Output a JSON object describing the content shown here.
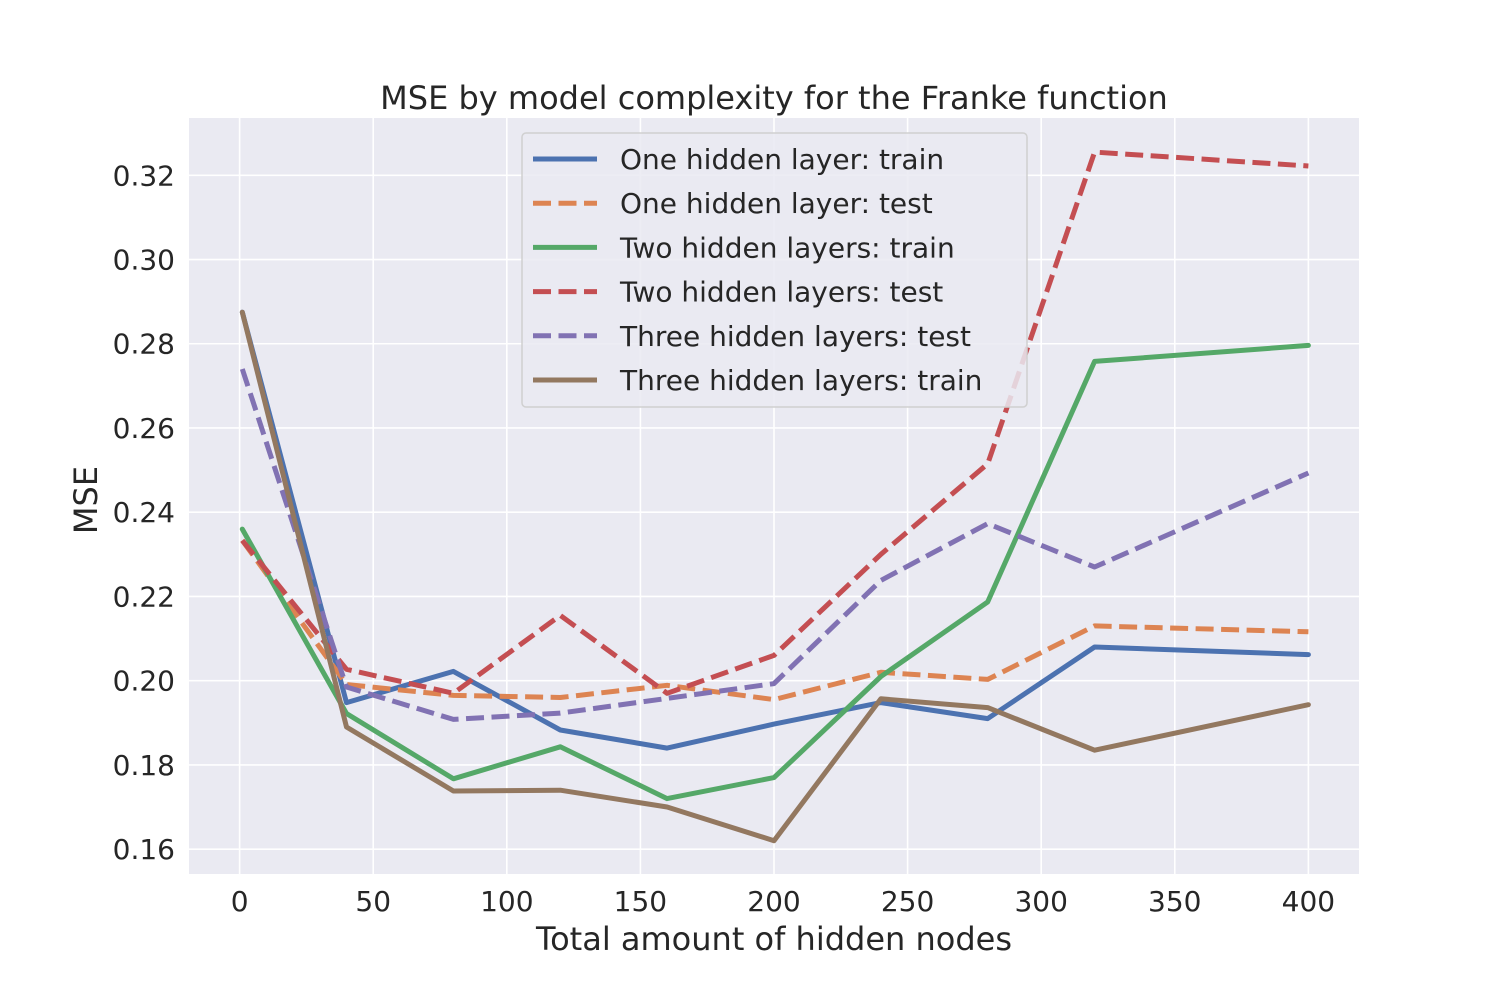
{
  "chart_data": {
    "type": "line",
    "title": "MSE by model complexity for the Franke function",
    "xlabel": "Total amount of hidden nodes",
    "ylabel": "MSE",
    "xlim": [
      -18.95,
      418.95
    ],
    "ylim": [
      0.1541,
      0.3336
    ],
    "xticks": [
      0,
      50,
      100,
      150,
      200,
      250,
      300,
      350,
      400
    ],
    "xtick_labels": [
      "0",
      "50",
      "100",
      "150",
      "200",
      "250",
      "300",
      "350",
      "400"
    ],
    "yticks": [
      0.16,
      0.18,
      0.2,
      0.22,
      0.24,
      0.26,
      0.28,
      0.3,
      0.32
    ],
    "ytick_labels": [
      "0.16",
      "0.18",
      "0.20",
      "0.22",
      "0.24",
      "0.26",
      "0.28",
      "0.30",
      "0.32"
    ],
    "grid": true,
    "legend_position": "top-center",
    "x": [
      1,
      40,
      80,
      120,
      160,
      200,
      240,
      280,
      320,
      400
    ],
    "series": [
      {
        "name": "One hidden layer: train",
        "color": "#4c72b0",
        "dash": "solid",
        "values": [
          0.2875,
          0.1948,
          0.2022,
          0.1883,
          0.184,
          0.1897,
          0.1948,
          0.191,
          0.208,
          0.2062
        ]
      },
      {
        "name": "One hidden layer: test",
        "color": "#dd8452",
        "dash": "dashed",
        "values": [
          0.2333,
          0.1991,
          0.1965,
          0.196,
          0.1989,
          0.1955,
          0.202,
          0.2003,
          0.213,
          0.2116
        ]
      },
      {
        "name": "Two hidden layers: train",
        "color": "#55a868",
        "dash": "solid",
        "values": [
          0.236,
          0.1922,
          0.1767,
          0.1843,
          0.172,
          0.177,
          0.201,
          0.2187,
          0.2758,
          0.2796
        ]
      },
      {
        "name": "Two hidden layers: test",
        "color": "#c44e52",
        "dash": "dashed",
        "values": [
          0.2333,
          0.2027,
          0.197,
          0.2155,
          0.197,
          0.206,
          0.23,
          0.2515,
          0.3255,
          0.3222
        ]
      },
      {
        "name": "Three hidden layers: test",
        "color": "#8172b3",
        "dash": "dashed",
        "values": [
          0.274,
          0.1985,
          0.1908,
          0.1923,
          0.1958,
          0.1993,
          0.2238,
          0.2373,
          0.227,
          0.2493
        ]
      },
      {
        "name": "Three hidden layers: train",
        "color": "#937860",
        "dash": "solid",
        "values": [
          0.2875,
          0.189,
          0.1738,
          0.174,
          0.17,
          0.162,
          0.1957,
          0.1936,
          0.1835,
          0.1943
        ]
      }
    ]
  }
}
